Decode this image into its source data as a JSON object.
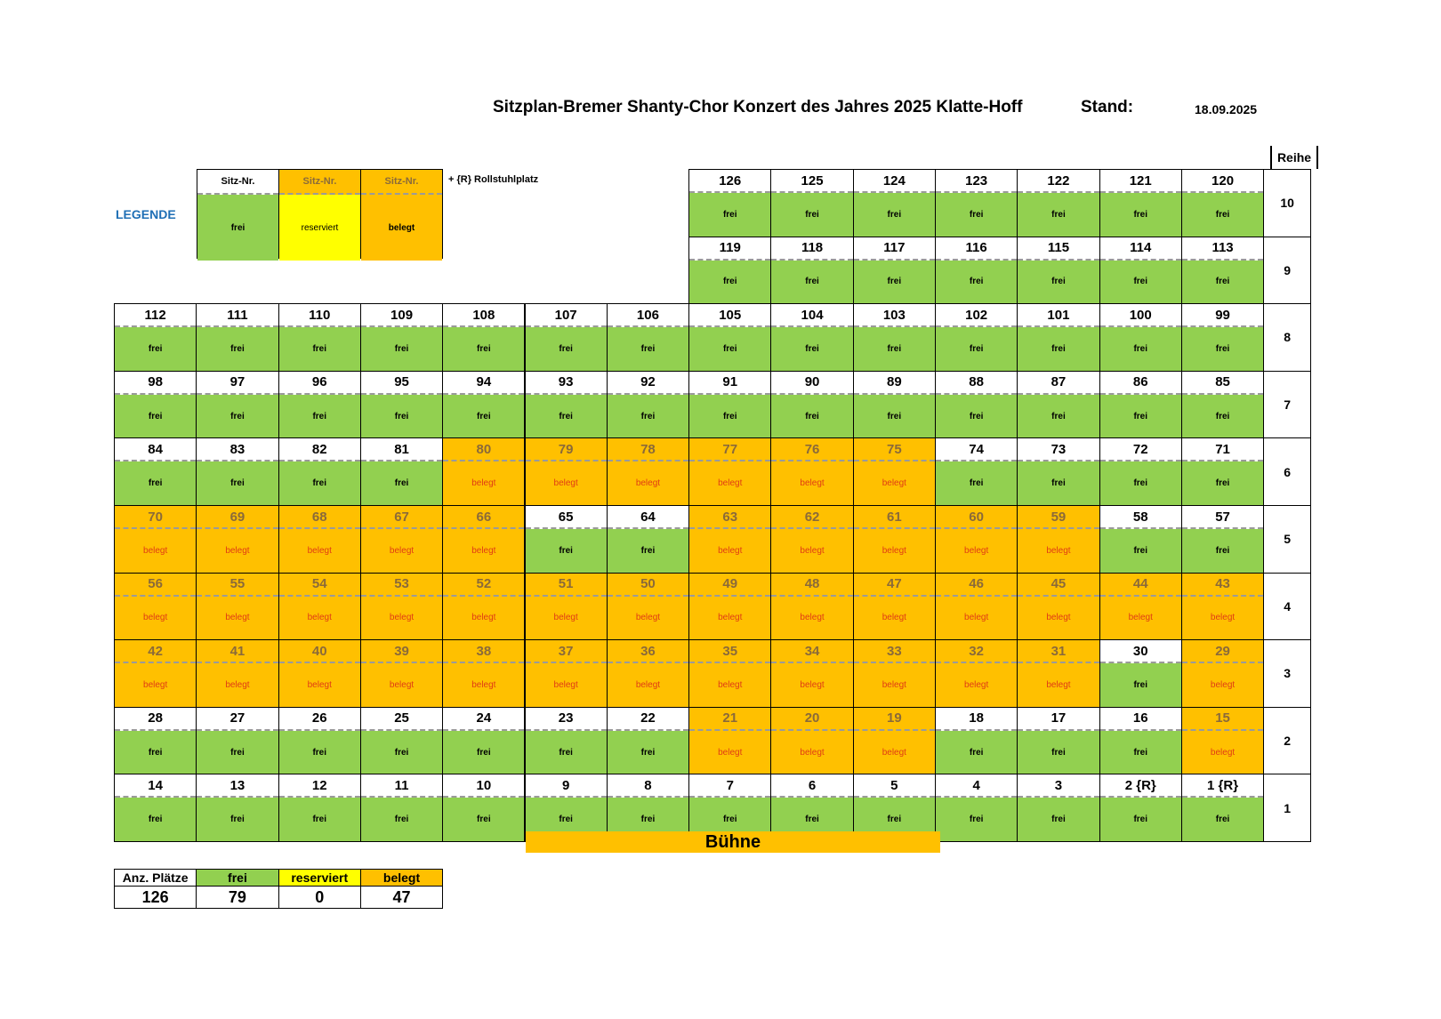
{
  "header": {
    "title": "Sitzplan-Bremer Shanty-Chor Konzert des Jahres  2025 Klatte-Hoff",
    "stand_label": "Stand:",
    "stand_date": "18.09.2025"
  },
  "legend": {
    "label": "LEGENDE",
    "items": [
      {
        "head": "Sitz-Nr.",
        "body": "frei",
        "status": "frei"
      },
      {
        "head": "Sitz-Nr.",
        "body": "reserviert",
        "status": "reserviert"
      },
      {
        "head": "Sitz-Nr.",
        "body": "belegt",
        "status": "belegt"
      }
    ],
    "note": "+ {R}   Rollstuhlplatz"
  },
  "reihe_header": "Reihe",
  "stage": "Bühne",
  "colors": {
    "frei": "#92d050",
    "belegt": "#ffc000",
    "reserviert": "#ffff00",
    "legend_label": "#1f6fb5"
  },
  "rows": [
    {
      "reihe": "10",
      "start_col": 7,
      "seats": [
        {
          "n": "126",
          "s": "frei"
        },
        {
          "n": "125",
          "s": "frei"
        },
        {
          "n": "124",
          "s": "frei"
        },
        {
          "n": "123",
          "s": "frei"
        },
        {
          "n": "122",
          "s": "frei"
        },
        {
          "n": "121",
          "s": "frei"
        },
        {
          "n": "120",
          "s": "frei"
        }
      ]
    },
    {
      "reihe": "9",
      "start_col": 7,
      "seats": [
        {
          "n": "119",
          "s": "frei"
        },
        {
          "n": "118",
          "s": "frei"
        },
        {
          "n": "117",
          "s": "frei"
        },
        {
          "n": "116",
          "s": "frei"
        },
        {
          "n": "115",
          "s": "frei"
        },
        {
          "n": "114",
          "s": "frei"
        },
        {
          "n": "113",
          "s": "frei"
        }
      ]
    },
    {
      "reihe": "8",
      "start_col": 0,
      "seats": [
        {
          "n": "112",
          "s": "frei"
        },
        {
          "n": "111",
          "s": "frei"
        },
        {
          "n": "110",
          "s": "frei"
        },
        {
          "n": "109",
          "s": "frei"
        },
        {
          "n": "108",
          "s": "frei"
        },
        {
          "n": "107",
          "s": "frei"
        },
        {
          "n": "106",
          "s": "frei"
        },
        {
          "n": "105",
          "s": "frei"
        },
        {
          "n": "104",
          "s": "frei"
        },
        {
          "n": "103",
          "s": "frei"
        },
        {
          "n": "102",
          "s": "frei"
        },
        {
          "n": "101",
          "s": "frei"
        },
        {
          "n": "100",
          "s": "frei"
        },
        {
          "n": "99",
          "s": "frei"
        }
      ]
    },
    {
      "reihe": "7",
      "start_col": 0,
      "seats": [
        {
          "n": "98",
          "s": "frei"
        },
        {
          "n": "97",
          "s": "frei"
        },
        {
          "n": "96",
          "s": "frei"
        },
        {
          "n": "95",
          "s": "frei"
        },
        {
          "n": "94",
          "s": "frei"
        },
        {
          "n": "93",
          "s": "frei"
        },
        {
          "n": "92",
          "s": "frei"
        },
        {
          "n": "91",
          "s": "frei"
        },
        {
          "n": "90",
          "s": "frei"
        },
        {
          "n": "89",
          "s": "frei"
        },
        {
          "n": "88",
          "s": "frei"
        },
        {
          "n": "87",
          "s": "frei"
        },
        {
          "n": "86",
          "s": "frei"
        },
        {
          "n": "85",
          "s": "frei"
        }
      ]
    },
    {
      "reihe": "6",
      "start_col": 0,
      "seats": [
        {
          "n": "84",
          "s": "frei"
        },
        {
          "n": "83",
          "s": "frei"
        },
        {
          "n": "82",
          "s": "frei"
        },
        {
          "n": "81",
          "s": "frei"
        },
        {
          "n": "80",
          "s": "belegt"
        },
        {
          "n": "79",
          "s": "belegt"
        },
        {
          "n": "78",
          "s": "belegt"
        },
        {
          "n": "77",
          "s": "belegt"
        },
        {
          "n": "76",
          "s": "belegt"
        },
        {
          "n": "75",
          "s": "belegt"
        },
        {
          "n": "74",
          "s": "frei"
        },
        {
          "n": "73",
          "s": "frei"
        },
        {
          "n": "72",
          "s": "frei"
        },
        {
          "n": "71",
          "s": "frei"
        }
      ]
    },
    {
      "reihe": "5",
      "start_col": 0,
      "seats": [
        {
          "n": "70",
          "s": "belegt"
        },
        {
          "n": "69",
          "s": "belegt"
        },
        {
          "n": "68",
          "s": "belegt"
        },
        {
          "n": "67",
          "s": "belegt"
        },
        {
          "n": "66",
          "s": "belegt"
        },
        {
          "n": "65",
          "s": "frei"
        },
        {
          "n": "64",
          "s": "frei"
        },
        {
          "n": "63",
          "s": "belegt"
        },
        {
          "n": "62",
          "s": "belegt"
        },
        {
          "n": "61",
          "s": "belegt"
        },
        {
          "n": "60",
          "s": "belegt"
        },
        {
          "n": "59",
          "s": "belegt"
        },
        {
          "n": "58",
          "s": "frei"
        },
        {
          "n": "57",
          "s": "frei"
        }
      ]
    },
    {
      "reihe": "4",
      "start_col": 0,
      "seats": [
        {
          "n": "56",
          "s": "belegt"
        },
        {
          "n": "55",
          "s": "belegt"
        },
        {
          "n": "54",
          "s": "belegt"
        },
        {
          "n": "53",
          "s": "belegt"
        },
        {
          "n": "52",
          "s": "belegt"
        },
        {
          "n": "51",
          "s": "belegt"
        },
        {
          "n": "50",
          "s": "belegt"
        },
        {
          "n": "49",
          "s": "belegt"
        },
        {
          "n": "48",
          "s": "belegt"
        },
        {
          "n": "47",
          "s": "belegt"
        },
        {
          "n": "46",
          "s": "belegt"
        },
        {
          "n": "45",
          "s": "belegt"
        },
        {
          "n": "44",
          "s": "belegt"
        },
        {
          "n": "43",
          "s": "belegt"
        }
      ]
    },
    {
      "reihe": "3",
      "start_col": 0,
      "seats": [
        {
          "n": "42",
          "s": "belegt"
        },
        {
          "n": "41",
          "s": "belegt"
        },
        {
          "n": "40",
          "s": "belegt"
        },
        {
          "n": "39",
          "s": "belegt"
        },
        {
          "n": "38",
          "s": "belegt"
        },
        {
          "n": "37",
          "s": "belegt"
        },
        {
          "n": "36",
          "s": "belegt"
        },
        {
          "n": "35",
          "s": "belegt"
        },
        {
          "n": "34",
          "s": "belegt"
        },
        {
          "n": "33",
          "s": "belegt"
        },
        {
          "n": "32",
          "s": "belegt"
        },
        {
          "n": "31",
          "s": "belegt"
        },
        {
          "n": "30",
          "s": "frei"
        },
        {
          "n": "29",
          "s": "belegt"
        }
      ]
    },
    {
      "reihe": "2",
      "start_col": 0,
      "seats": [
        {
          "n": "28",
          "s": "frei"
        },
        {
          "n": "27",
          "s": "frei"
        },
        {
          "n": "26",
          "s": "frei"
        },
        {
          "n": "25",
          "s": "frei"
        },
        {
          "n": "24",
          "s": "frei"
        },
        {
          "n": "23",
          "s": "frei"
        },
        {
          "n": "22",
          "s": "frei"
        },
        {
          "n": "21",
          "s": "belegt"
        },
        {
          "n": "20",
          "s": "belegt"
        },
        {
          "n": "19",
          "s": "belegt"
        },
        {
          "n": "18",
          "s": "frei"
        },
        {
          "n": "17",
          "s": "frei"
        },
        {
          "n": "16",
          "s": "frei"
        },
        {
          "n": "15",
          "s": "belegt"
        }
      ]
    },
    {
      "reihe": "1",
      "start_col": 0,
      "seats": [
        {
          "n": "14",
          "s": "frei"
        },
        {
          "n": "13",
          "s": "frei"
        },
        {
          "n": "12",
          "s": "frei"
        },
        {
          "n": "11",
          "s": "frei"
        },
        {
          "n": "10",
          "s": "frei"
        },
        {
          "n": "9",
          "s": "frei"
        },
        {
          "n": "8",
          "s": "frei"
        },
        {
          "n": "7",
          "s": "frei"
        },
        {
          "n": "6",
          "s": "frei"
        },
        {
          "n": "5",
          "s": "frei"
        },
        {
          "n": "4",
          "s": "frei"
        },
        {
          "n": "3",
          "s": "frei"
        },
        {
          "n": "2 {R}",
          "s": "frei"
        },
        {
          "n": "1 {R}",
          "s": "frei"
        }
      ]
    }
  ],
  "summary": {
    "headers": [
      "Anz. Plätze",
      "frei",
      "reserviert",
      "belegt"
    ],
    "values": [
      "126",
      "79",
      "0",
      "47"
    ]
  }
}
